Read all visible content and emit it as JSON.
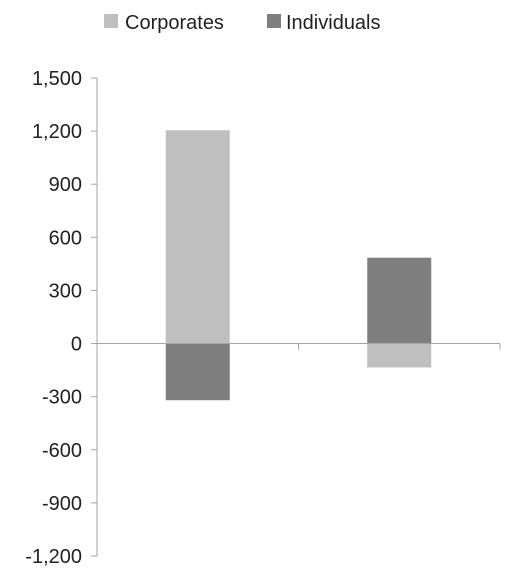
{
  "chart_data": {
    "type": "bar",
    "stacked": true,
    "title": "",
    "xlabel": "",
    "ylabel": "",
    "categories": [
      "",
      ""
    ],
    "series": [
      {
        "name": "Corporates",
        "color": "#bfbfbf",
        "values": [
          1205,
          -135
        ]
      },
      {
        "name": "Individuals",
        "color": "#7f7f7f",
        "values": [
          -320,
          485
        ]
      }
    ],
    "ylim": [
      -1200,
      1500
    ],
    "yticks": [
      1500,
      1200,
      900,
      600,
      300,
      0,
      -300,
      -600,
      -900,
      -1200
    ],
    "ytick_labels": [
      "1,500",
      "1,200",
      "900",
      "600",
      "300",
      "0",
      "-300",
      "-600",
      "-900",
      "-1,200"
    ],
    "grid": false,
    "legend": "top-center",
    "axis_color": "#a6a6a6"
  }
}
